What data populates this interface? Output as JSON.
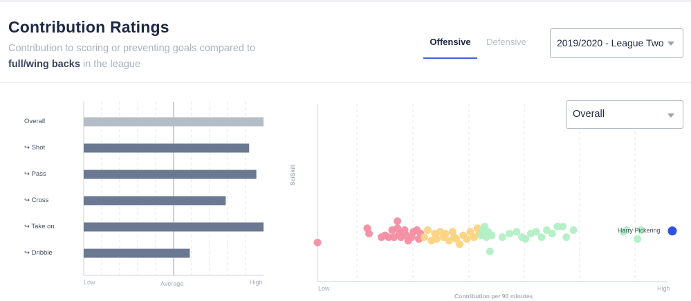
{
  "header": {
    "title": "Contribution Ratings",
    "subtitle_pre": "Contribution to scoring or preventing goals compared to",
    "subtitle_strong": "full/wing backs",
    "subtitle_post": "in the league"
  },
  "tabs": {
    "offensive": "Offensive",
    "defensive": "Defensive",
    "active": "offensive"
  },
  "season_select": {
    "value": "2019/2020 - League Two"
  },
  "metric_select": {
    "value": "Overall"
  },
  "colors": {
    "overall_bar": "#b4bcc8",
    "sub_bar": "#6b7891",
    "red": "#f48ea3",
    "yellow": "#fcd37f",
    "green": "#b2efc4",
    "highlight": "#2d50e6"
  },
  "chart_data": [
    {
      "type": "bar",
      "orientation": "horizontal",
      "categories": [
        "Overall",
        "↪ Shot",
        "↪ Pass",
        "↪ Cross",
        "↪ Take on",
        "↪ Dribble"
      ],
      "values": [
        1.0,
        0.92,
        0.96,
        0.79,
        1.0,
        0.59
      ],
      "xlim": [
        0,
        1
      ],
      "reference": {
        "label": "Average",
        "value": 0.5
      },
      "x_tick_labels": {
        "low": "Low",
        "mid": "Average",
        "high": "High"
      },
      "grid": true
    },
    {
      "type": "scatter",
      "xlabel": "Contribution per 90 minutes",
      "ylabel": "SciSkill",
      "x_tick_labels": {
        "low": "Low",
        "high": "High"
      },
      "xlim": [
        0,
        1
      ],
      "ylim": [
        0,
        1
      ],
      "highlight": {
        "label": "Harry Pickering",
        "x": 1.0,
        "y": 0.285
      },
      "groups": [
        {
          "color": "red",
          "points": [
            [
              0.0,
              0.22
            ],
            [
              0.14,
              0.3
            ],
            [
              0.145,
              0.27
            ],
            [
              0.18,
              0.25
            ],
            [
              0.19,
              0.26
            ],
            [
              0.2,
              0.25
            ],
            [
              0.21,
              0.29
            ],
            [
              0.215,
              0.25
            ],
            [
              0.225,
              0.34
            ],
            [
              0.225,
              0.3
            ],
            [
              0.23,
              0.27
            ],
            [
              0.235,
              0.25
            ],
            [
              0.245,
              0.29
            ],
            [
              0.25,
              0.26
            ],
            [
              0.255,
              0.23
            ],
            [
              0.265,
              0.25
            ],
            [
              0.27,
              0.28
            ],
            [
              0.28,
              0.29
            ],
            [
              0.285,
              0.24
            ],
            [
              0.29,
              0.27
            ]
          ]
        },
        {
          "color": "yellow",
          "points": [
            [
              0.3,
              0.25
            ],
            [
              0.31,
              0.29
            ],
            [
              0.32,
              0.23
            ],
            [
              0.33,
              0.27
            ],
            [
              0.335,
              0.24
            ],
            [
              0.345,
              0.28
            ],
            [
              0.355,
              0.25
            ],
            [
              0.36,
              0.27
            ],
            [
              0.37,
              0.23
            ],
            [
              0.38,
              0.28
            ],
            [
              0.385,
              0.25
            ],
            [
              0.39,
              0.24
            ],
            [
              0.4,
              0.21
            ],
            [
              0.41,
              0.26
            ],
            [
              0.42,
              0.24
            ],
            [
              0.43,
              0.28
            ],
            [
              0.44,
              0.25
            ],
            [
              0.45,
              0.3
            ],
            [
              0.455,
              0.27
            ]
          ]
        },
        {
          "color": "green",
          "points": [
            [
              0.46,
              0.26
            ],
            [
              0.465,
              0.29
            ],
            [
              0.47,
              0.31
            ],
            [
              0.475,
              0.25
            ],
            [
              0.48,
              0.28
            ],
            [
              0.485,
              0.17
            ],
            [
              0.49,
              0.26
            ],
            [
              0.52,
              0.25
            ],
            [
              0.54,
              0.27
            ],
            [
              0.56,
              0.28
            ],
            [
              0.575,
              0.25
            ],
            [
              0.585,
              0.24
            ],
            [
              0.6,
              0.27
            ],
            [
              0.615,
              0.28
            ],
            [
              0.63,
              0.25
            ],
            [
              0.645,
              0.29
            ],
            [
              0.66,
              0.27
            ],
            [
              0.675,
              0.31
            ],
            [
              0.69,
              0.31
            ],
            [
              0.7,
              0.25
            ],
            [
              0.72,
              0.29
            ],
            [
              0.86,
              0.28
            ],
            [
              0.87,
              0.29
            ],
            [
              0.9,
              0.24
            ],
            [
              0.91,
              0.29
            ]
          ]
        }
      ]
    }
  ]
}
